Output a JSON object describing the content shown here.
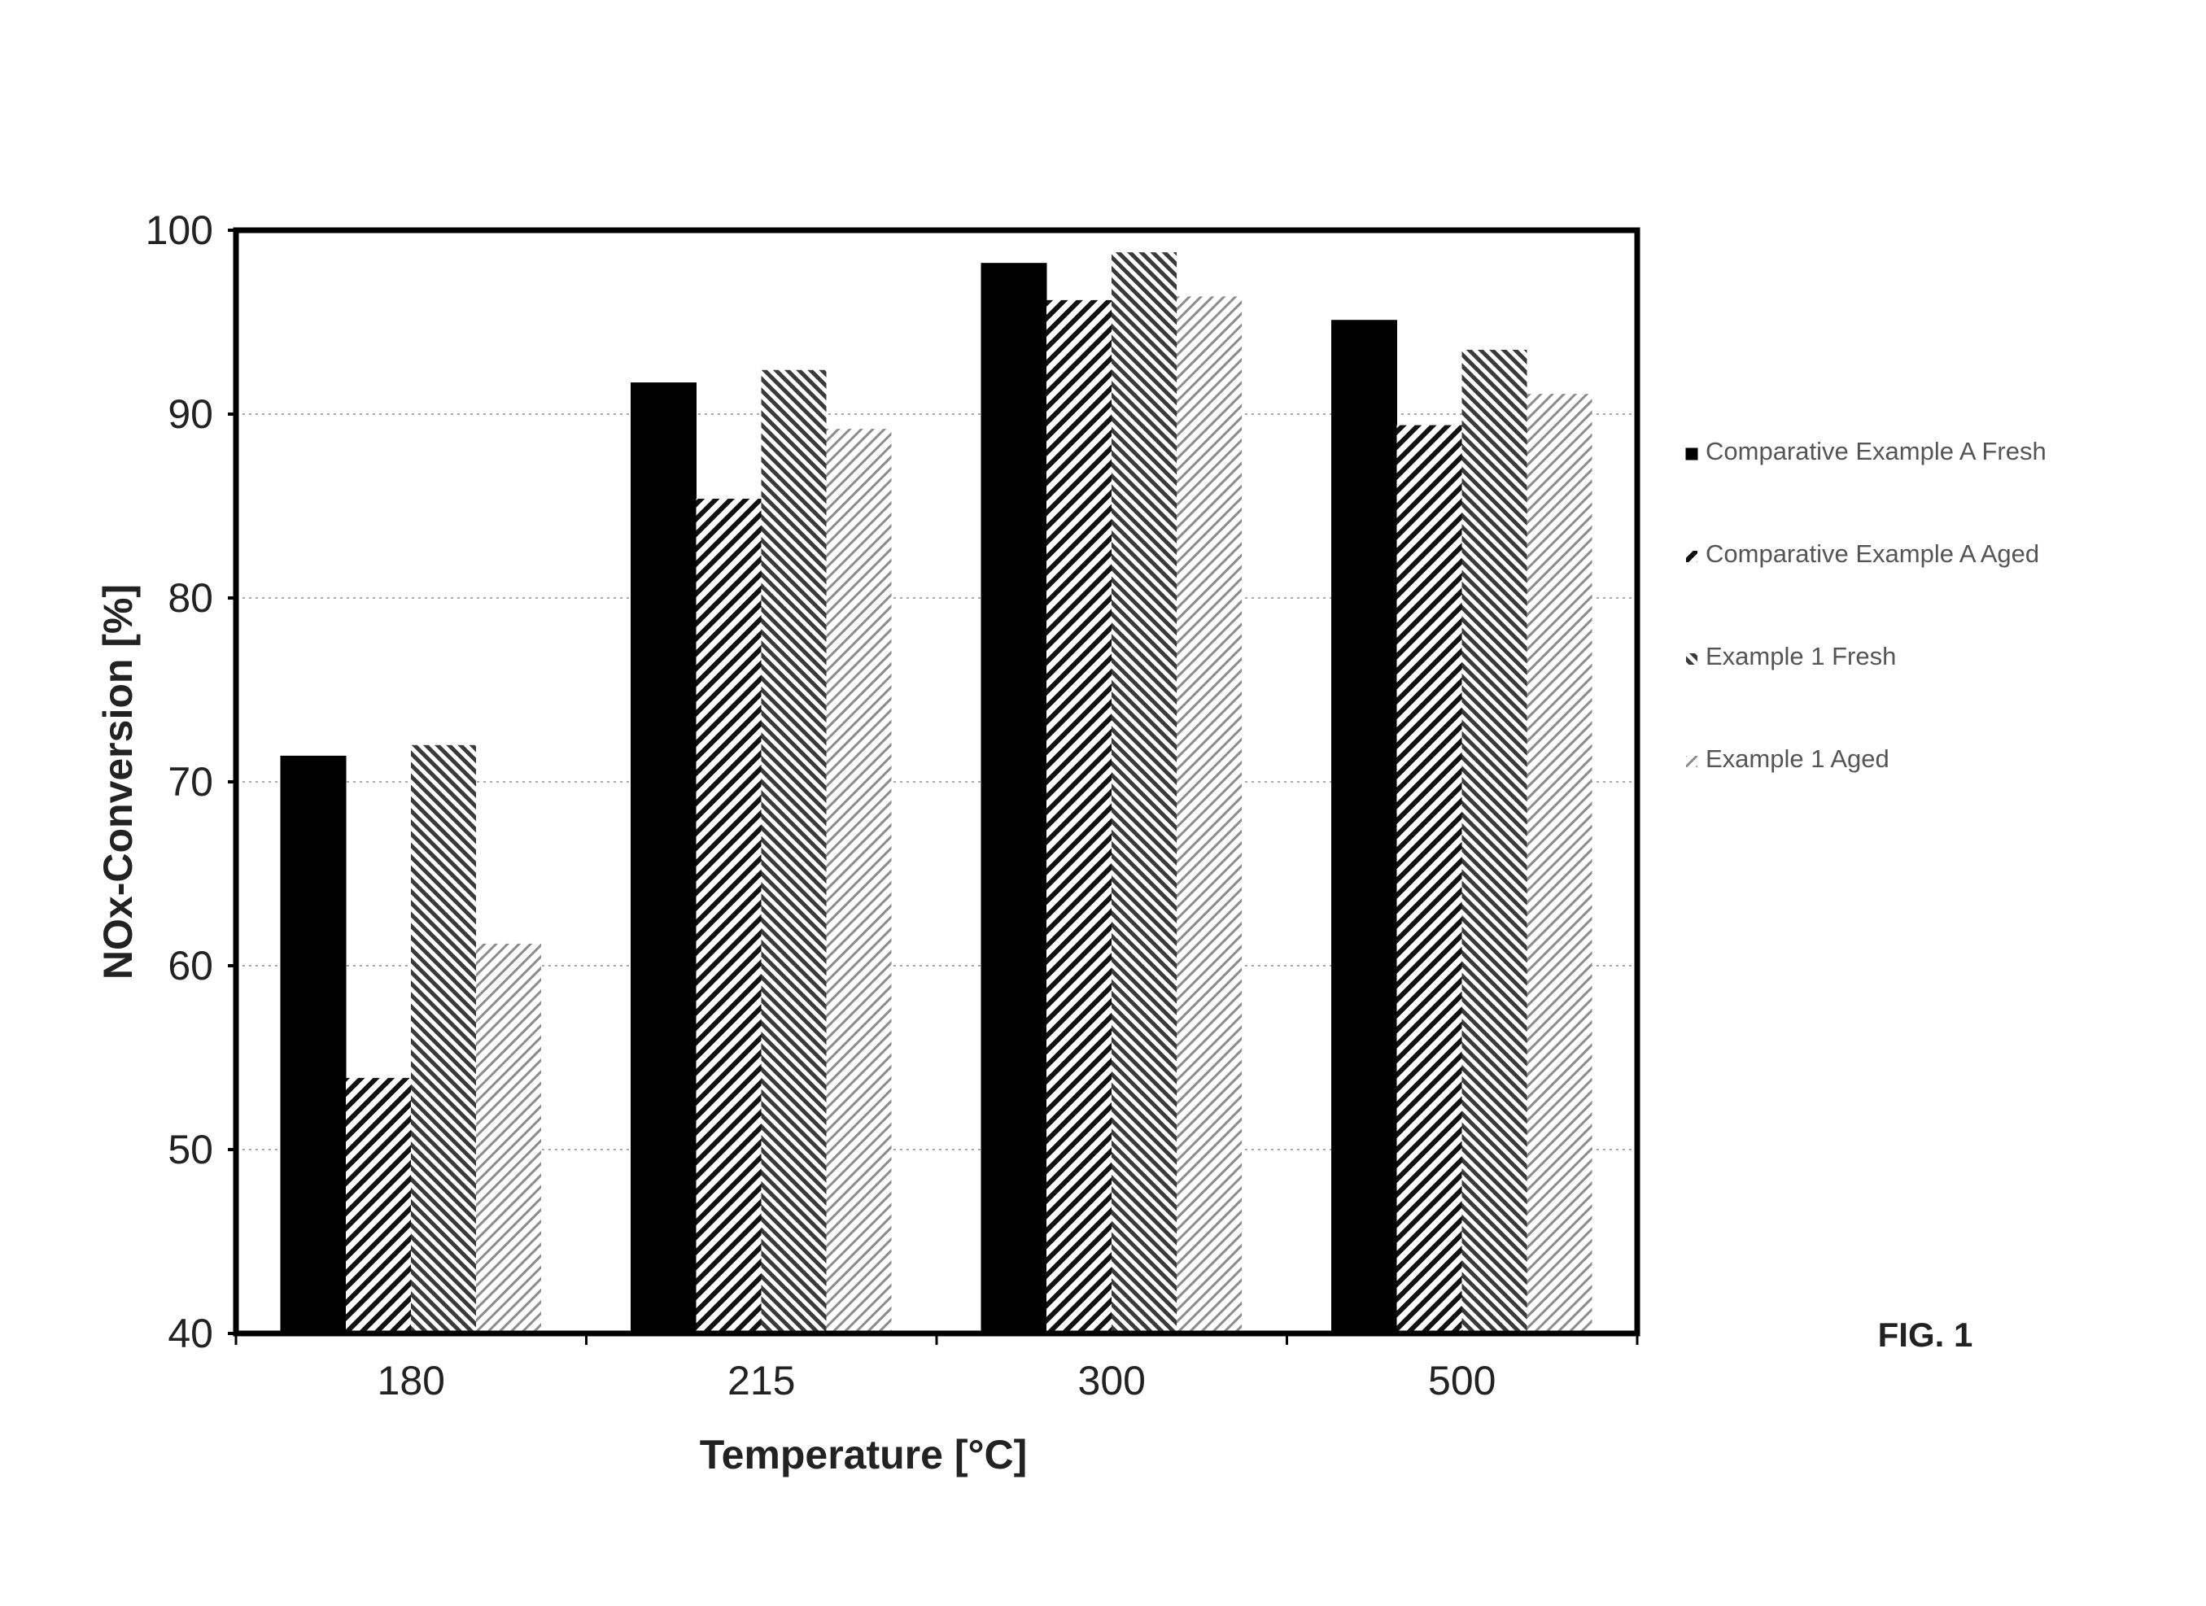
{
  "figure_label": "FIG. 1",
  "colors": {
    "frame": "#000000",
    "grid": "#aaaaaa",
    "series_fill": [
      "#000000",
      "#ffffff",
      "#ffffff",
      "#ffffff"
    ],
    "series_hatch": [
      "#000000",
      "#111111",
      "#3a3a3a",
      "#8c8c8c"
    ]
  },
  "chart_data": {
    "type": "bar",
    "title": "",
    "xlabel": "Temperature [°C]",
    "ylabel": "NOx-Conversion [%]",
    "categories": [
      "180",
      "215",
      "300",
      "500"
    ],
    "ylim": [
      40,
      100
    ],
    "yticks": [
      40,
      50,
      60,
      70,
      80,
      90,
      100
    ],
    "grid": true,
    "legend_position": "right",
    "series": [
      {
        "name": "Comparative Example A Fresh",
        "values": [
          71.4,
          91.7,
          98.2,
          95.1
        ],
        "pattern": "solid"
      },
      {
        "name": "Comparative Example A Aged",
        "values": [
          53.9,
          85.4,
          96.2,
          89.4
        ],
        "pattern": "dense-backslash-hatch"
      },
      {
        "name": "Example 1 Fresh",
        "values": [
          72.0,
          92.4,
          98.8,
          93.5
        ],
        "pattern": "dense-slash-hatch"
      },
      {
        "name": "Example 1 Aged",
        "values": [
          61.2,
          89.2,
          96.4,
          91.1
        ],
        "pattern": "light-backslash-hatch"
      }
    ]
  }
}
